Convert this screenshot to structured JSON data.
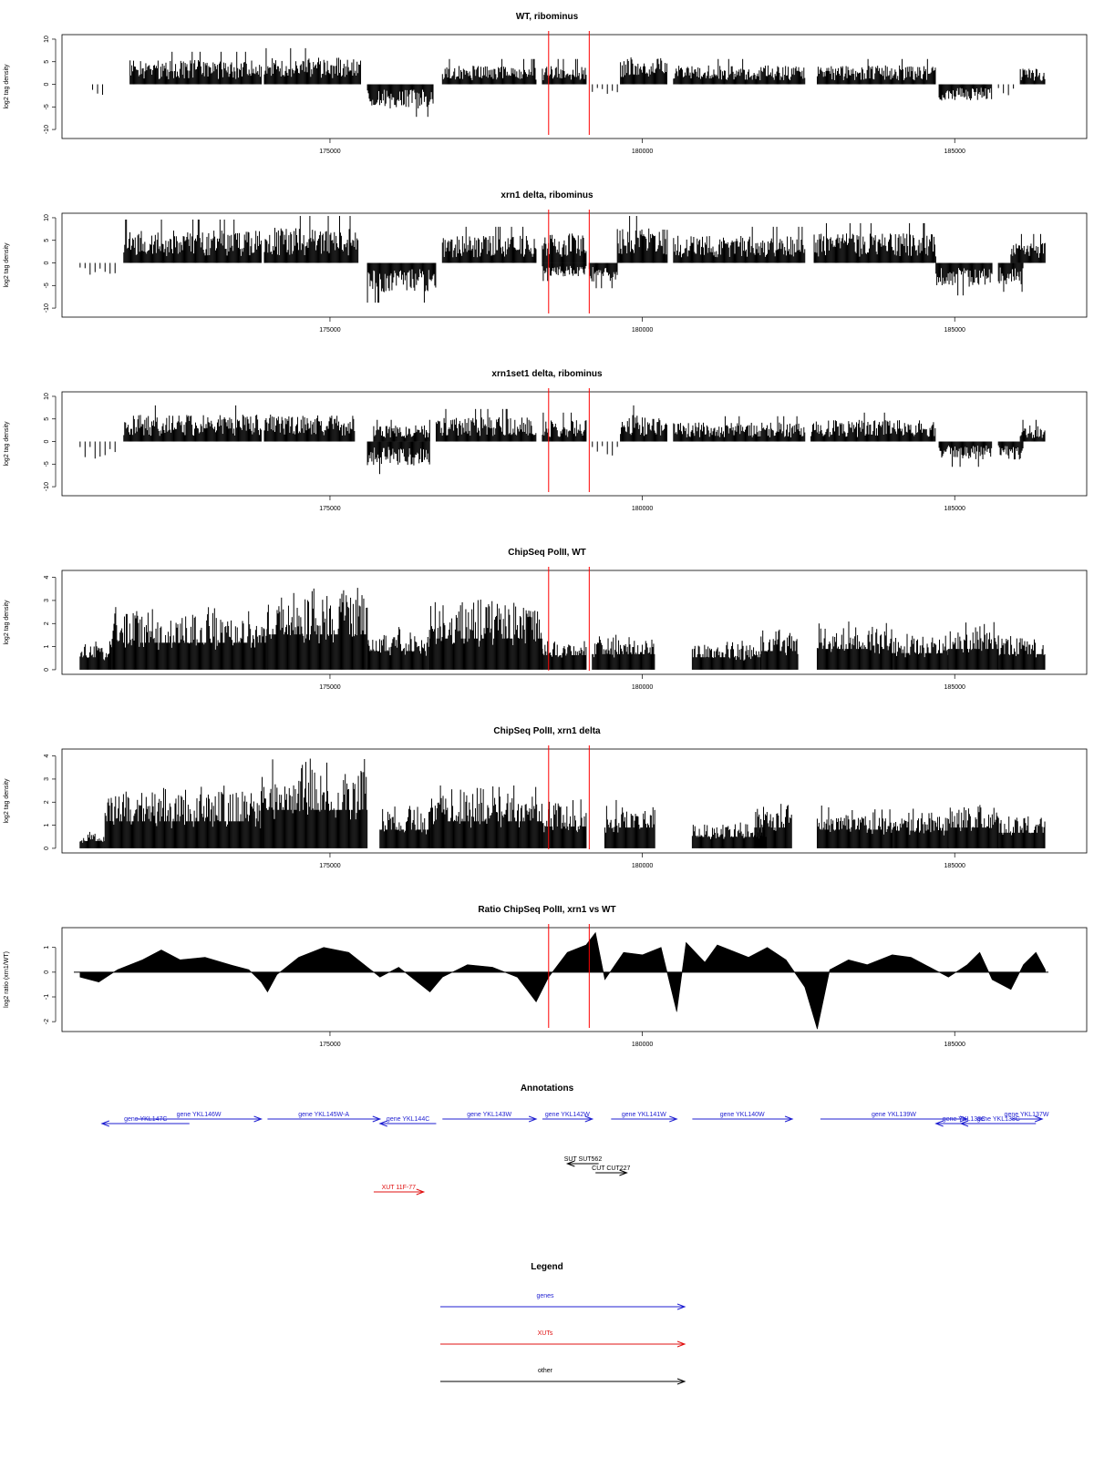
{
  "colors": {
    "gene": "#1f1fd1",
    "xut": "#e01010",
    "other": "#000000",
    "marker": "#ff0000",
    "bars": "#000000"
  },
  "xaxis": {
    "range": [
      170900,
      186500
    ],
    "ticks": [
      175000,
      180000,
      185000
    ],
    "tick_labels": [
      "175000",
      "180000",
      "185000"
    ]
  },
  "markers": [
    178500,
    179150
  ],
  "chart_data": [
    {
      "type": "bar",
      "title": "WT, ribominus",
      "ylabel": "log2 tag density",
      "ylim": [
        -12,
        11
      ],
      "yticks": [
        -10,
        -5,
        0,
        5,
        10
      ],
      "ytick_labels": [
        "-10",
        "-5",
        "0",
        "5",
        "10"
      ],
      "regions": [
        {
          "x": [
            171200,
            171400
          ],
          "y": -3,
          "mode": "noise"
        },
        {
          "x": [
            171800,
            173900
          ],
          "y": 4.5,
          "mode": "dense"
        },
        {
          "x": [
            173950,
            175500
          ],
          "y": 5,
          "mode": "dense"
        },
        {
          "x": [
            175600,
            176650
          ],
          "y": -4.5,
          "mode": "dense"
        },
        {
          "x": [
            176800,
            178300
          ],
          "y": 3.5,
          "mode": "dense"
        },
        {
          "x": [
            178400,
            179100
          ],
          "y": 3.5,
          "mode": "dense"
        },
        {
          "x": [
            179200,
            179600
          ],
          "y": -2,
          "mode": "noise"
        },
        {
          "x": [
            179650,
            180400
          ],
          "y": 5,
          "mode": "dense"
        },
        {
          "x": [
            180500,
            182600
          ],
          "y": 3.5,
          "mode": "dense"
        },
        {
          "x": [
            182800,
            184700
          ],
          "y": 3.5,
          "mode": "dense"
        },
        {
          "x": [
            184750,
            185600
          ],
          "y": -3,
          "mode": "dense"
        },
        {
          "x": [
            185700,
            186000
          ],
          "y": -2,
          "mode": "noise"
        },
        {
          "x": [
            186050,
            186450
          ],
          "y": 3,
          "mode": "dense"
        }
      ]
    },
    {
      "type": "bar",
      "title": "xrn1 delta, ribominus",
      "ylabel": "log2 tag density",
      "ylim": [
        -12,
        11
      ],
      "yticks": [
        -10,
        -5,
        0,
        5,
        10
      ],
      "ytick_labels": [
        "-10",
        "-5",
        "0",
        "5",
        "10"
      ],
      "regions": [
        {
          "x": [
            171000,
            171600
          ],
          "y": -2.5,
          "mode": "noise"
        },
        {
          "x": [
            171700,
            173900
          ],
          "y": 6,
          "mode": "dense"
        },
        {
          "x": [
            173950,
            175450
          ],
          "y": 6.5,
          "mode": "dense"
        },
        {
          "x": [
            175600,
            176700
          ],
          "y": -5.5,
          "mode": "dense"
        },
        {
          "x": [
            176800,
            178300
          ],
          "y": 5,
          "mode": "dense"
        },
        {
          "x": [
            178400,
            179100
          ],
          "y": 5.5,
          "mode": "dense"
        },
        {
          "x": [
            178400,
            179100
          ],
          "y": -2.5,
          "mode": "dense"
        },
        {
          "x": [
            179150,
            179600
          ],
          "y": -3.5,
          "mode": "dense"
        },
        {
          "x": [
            179600,
            180400
          ],
          "y": 6.5,
          "mode": "dense"
        },
        {
          "x": [
            180500,
            182600
          ],
          "y": 5,
          "mode": "dense"
        },
        {
          "x": [
            182750,
            184700
          ],
          "y": 5.5,
          "mode": "dense"
        },
        {
          "x": [
            184700,
            185600
          ],
          "y": -4.5,
          "mode": "dense"
        },
        {
          "x": [
            185700,
            186100
          ],
          "y": -4,
          "mode": "dense"
        },
        {
          "x": [
            185900,
            186450
          ],
          "y": 4,
          "mode": "dense"
        }
      ]
    },
    {
      "type": "bar",
      "title": "xrn1set1 delta, ribominus",
      "ylabel": "log2 tag density",
      "ylim": [
        -12,
        11
      ],
      "yticks": [
        -10,
        -5,
        0,
        5,
        10
      ],
      "ytick_labels": [
        "-10",
        "-5",
        "0",
        "5",
        "10"
      ],
      "regions": [
        {
          "x": [
            171000,
            171600
          ],
          "y": -3,
          "mode": "noise"
        },
        {
          "x": [
            171700,
            173900
          ],
          "y": 5,
          "mode": "dense"
        },
        {
          "x": [
            173950,
            175400
          ],
          "y": 5,
          "mode": "dense"
        },
        {
          "x": [
            175600,
            176600
          ],
          "y": -4.5,
          "mode": "dense"
        },
        {
          "x": [
            175700,
            176600
          ],
          "y": 3,
          "mode": "dense"
        },
        {
          "x": [
            176700,
            178300
          ],
          "y": 4.5,
          "mode": "dense"
        },
        {
          "x": [
            178400,
            179100
          ],
          "y": 4,
          "mode": "dense"
        },
        {
          "x": [
            179200,
            179600
          ],
          "y": -2.5,
          "mode": "noise"
        },
        {
          "x": [
            179650,
            180400
          ],
          "y": 5,
          "mode": "dense"
        },
        {
          "x": [
            180500,
            182600
          ],
          "y": 3.5,
          "mode": "dense"
        },
        {
          "x": [
            182700,
            184700
          ],
          "y": 4,
          "mode": "dense"
        },
        {
          "x": [
            184750,
            185600
          ],
          "y": -3.5,
          "mode": "dense"
        },
        {
          "x": [
            185700,
            186100
          ],
          "y": -3.5,
          "mode": "dense"
        },
        {
          "x": [
            186050,
            186450
          ],
          "y": 3,
          "mode": "dense"
        }
      ]
    },
    {
      "type": "bar",
      "title": "ChipSeq PolII, WT",
      "ylabel": "log2 tag density",
      "ylim": [
        -0.2,
        4.3
      ],
      "yticks": [
        0,
        1,
        2,
        3,
        4
      ],
      "ytick_labels": [
        "0",
        "1",
        "2",
        "3",
        "4"
      ],
      "regions": [
        {
          "x": [
            171000,
            171500
          ],
          "y": 1.2,
          "mode": "step"
        },
        {
          "x": [
            171500,
            174000
          ],
          "y": 2.6,
          "mode": "step"
        },
        {
          "x": [
            174000,
            175600
          ],
          "y": 3.4,
          "mode": "step"
        },
        {
          "x": [
            175600,
            176600
          ],
          "y": 1.8,
          "mode": "step"
        },
        {
          "x": [
            176600,
            178400
          ],
          "y": 3.0,
          "mode": "step"
        },
        {
          "x": [
            178400,
            179100
          ],
          "y": 1.4,
          "mode": "step"
        },
        {
          "x": [
            179200,
            180200
          ],
          "y": 1.5,
          "mode": "step"
        },
        {
          "x": [
            180800,
            181900
          ],
          "y": 1.2,
          "mode": "step"
        },
        {
          "x": [
            181900,
            182500
          ],
          "y": 1.8,
          "mode": "step"
        },
        {
          "x": [
            182800,
            184000
          ],
          "y": 2.0,
          "mode": "step"
        },
        {
          "x": [
            184000,
            184900
          ],
          "y": 1.6,
          "mode": "step"
        },
        {
          "x": [
            184900,
            185700
          ],
          "y": 2.0,
          "mode": "step"
        },
        {
          "x": [
            185700,
            186450
          ],
          "y": 1.5,
          "mode": "step"
        }
      ]
    },
    {
      "type": "bar",
      "title": "ChipSeq PolII, xrn1 delta",
      "ylabel": "log2 tag density",
      "ylim": [
        -0.2,
        4.3
      ],
      "yticks": [
        0,
        1,
        2,
        3,
        4
      ],
      "ytick_labels": [
        "0",
        "1",
        "2",
        "3",
        "4"
      ],
      "regions": [
        {
          "x": [
            171000,
            171400
          ],
          "y": 0.7,
          "mode": "step"
        },
        {
          "x": [
            171400,
            173900
          ],
          "y": 2.6,
          "mode": "step"
        },
        {
          "x": [
            173900,
            175600
          ],
          "y": 3.7,
          "mode": "step"
        },
        {
          "x": [
            175800,
            176600
          ],
          "y": 1.8,
          "mode": "step"
        },
        {
          "x": [
            176600,
            178400
          ],
          "y": 2.6,
          "mode": "step"
        },
        {
          "x": [
            178400,
            179100
          ],
          "y": 2.1,
          "mode": "step"
        },
        {
          "x": [
            179400,
            180200
          ],
          "y": 2.0,
          "mode": "step"
        },
        {
          "x": [
            180800,
            182000
          ],
          "y": 1.1,
          "mode": "step"
        },
        {
          "x": [
            181800,
            182400
          ],
          "y": 2.0,
          "mode": "step"
        },
        {
          "x": [
            182800,
            184000
          ],
          "y": 1.8,
          "mode": "step"
        },
        {
          "x": [
            184000,
            184900
          ],
          "y": 1.7,
          "mode": "step"
        },
        {
          "x": [
            184900,
            185700
          ],
          "y": 2.0,
          "mode": "step"
        },
        {
          "x": [
            185700,
            186450
          ],
          "y": 1.5,
          "mode": "step"
        }
      ]
    },
    {
      "type": "area",
      "title": "Ratio ChipSeq PolII, xrn1 vs WT",
      "ylabel": "log2 ratio (xrn1/WT)",
      "ylim": [
        -2.4,
        1.8
      ],
      "yticks": [
        -2,
        -1,
        0,
        1
      ],
      "ytick_labels": [
        "-2",
        "-1",
        "0",
        "1"
      ],
      "profile": [
        [
          171000,
          -0.2
        ],
        [
          171300,
          -0.4
        ],
        [
          171600,
          0.1
        ],
        [
          172000,
          0.5
        ],
        [
          172300,
          0.9
        ],
        [
          172600,
          0.5
        ],
        [
          173000,
          0.6
        ],
        [
          173400,
          0.3
        ],
        [
          173700,
          0.1
        ],
        [
          173900,
          -0.4
        ],
        [
          174000,
          -0.8
        ],
        [
          174150,
          -0.1
        ],
        [
          174500,
          0.6
        ],
        [
          174900,
          1.0
        ],
        [
          175300,
          0.8
        ],
        [
          175600,
          0.2
        ],
        [
          175800,
          -0.2
        ],
        [
          176100,
          0.2
        ],
        [
          176400,
          -0.4
        ],
        [
          176600,
          -0.8
        ],
        [
          176800,
          -0.2
        ],
        [
          177200,
          0.3
        ],
        [
          177600,
          0.2
        ],
        [
          178000,
          -0.2
        ],
        [
          178300,
          -1.2
        ],
        [
          178500,
          -0.2
        ],
        [
          178800,
          0.8
        ],
        [
          179100,
          1.1
        ],
        [
          179250,
          1.6
        ],
        [
          179400,
          -0.3
        ],
        [
          179700,
          0.8
        ],
        [
          180000,
          0.7
        ],
        [
          180300,
          1.0
        ],
        [
          180550,
          -1.6
        ],
        [
          180700,
          1.2
        ],
        [
          181000,
          0.4
        ],
        [
          181200,
          1.1
        ],
        [
          181400,
          0.9
        ],
        [
          181700,
          0.6
        ],
        [
          182000,
          1.0
        ],
        [
          182300,
          0.5
        ],
        [
          182600,
          -0.6
        ],
        [
          182800,
          -2.3
        ],
        [
          183000,
          0.1
        ],
        [
          183300,
          0.5
        ],
        [
          183600,
          0.3
        ],
        [
          184000,
          0.7
        ],
        [
          184300,
          0.6
        ],
        [
          184600,
          0.2
        ],
        [
          184900,
          -0.2
        ],
        [
          185200,
          0.3
        ],
        [
          185400,
          0.8
        ],
        [
          185600,
          -0.3
        ],
        [
          185900,
          -0.7
        ],
        [
          186100,
          0.3
        ],
        [
          186300,
          0.8
        ],
        [
          186450,
          0.1
        ]
      ]
    }
  ],
  "annotations": {
    "title": "Annotations",
    "items": [
      {
        "label": "gene YKL147C",
        "type": "gene",
        "x": [
          171350,
          172750
        ],
        "dir": "left",
        "row": 2
      },
      {
        "label": "gene YKL146W",
        "type": "gene",
        "x": [
          171900,
          173900
        ],
        "dir": "right",
        "row": 1
      },
      {
        "label": "gene YKL145W-A",
        "type": "gene",
        "x": [
          174000,
          175800
        ],
        "dir": "right",
        "row": 1
      },
      {
        "label": "gene YKL144C",
        "type": "gene",
        "x": [
          175800,
          176700
        ],
        "dir": "left",
        "row": 2
      },
      {
        "label": "gene YKL143W",
        "type": "gene",
        "x": [
          176800,
          178300
        ],
        "dir": "right",
        "row": 1
      },
      {
        "label": "gene YKL142W",
        "type": "gene",
        "x": [
          178400,
          179200
        ],
        "dir": "right",
        "row": 1
      },
      {
        "label": "gene YKL141W",
        "type": "gene",
        "x": [
          179500,
          180550
        ],
        "dir": "right",
        "row": 1
      },
      {
        "label": "gene YKL140W",
        "type": "gene",
        "x": [
          180800,
          182400
        ],
        "dir": "right",
        "row": 1
      },
      {
        "label": "gene YKL139W",
        "type": "gene",
        "x": [
          182850,
          185200
        ],
        "dir": "right",
        "row": 1
      },
      {
        "label": "gene YKL138C",
        "type": "gene",
        "x": [
          184700,
          185600
        ],
        "dir": "left",
        "row": 2
      },
      {
        "label": "gene YKL138C",
        "type": "gene",
        "x": [
          185100,
          186300
        ],
        "dir": "left",
        "row": 2
      },
      {
        "label": "gene YKL137W",
        "type": "gene",
        "x": [
          185900,
          186400
        ],
        "dir": "right",
        "row": 1
      },
      {
        "label": "SUT SUT562",
        "type": "other",
        "x": [
          178800,
          179300
        ],
        "dir": "left",
        "row": 3
      },
      {
        "label": "CUT CUT227",
        "type": "other",
        "x": [
          179250,
          179750
        ],
        "dir": "right",
        "row": 4
      },
      {
        "label": "XUT 11F-77",
        "type": "xut",
        "x": [
          175700,
          176500
        ],
        "dir": "right",
        "row": 5
      }
    ]
  },
  "legend": {
    "title": "Legend",
    "items": [
      {
        "label": "genes",
        "type": "gene"
      },
      {
        "label": "XUTs",
        "type": "xut"
      },
      {
        "label": "other",
        "type": "other"
      }
    ]
  }
}
